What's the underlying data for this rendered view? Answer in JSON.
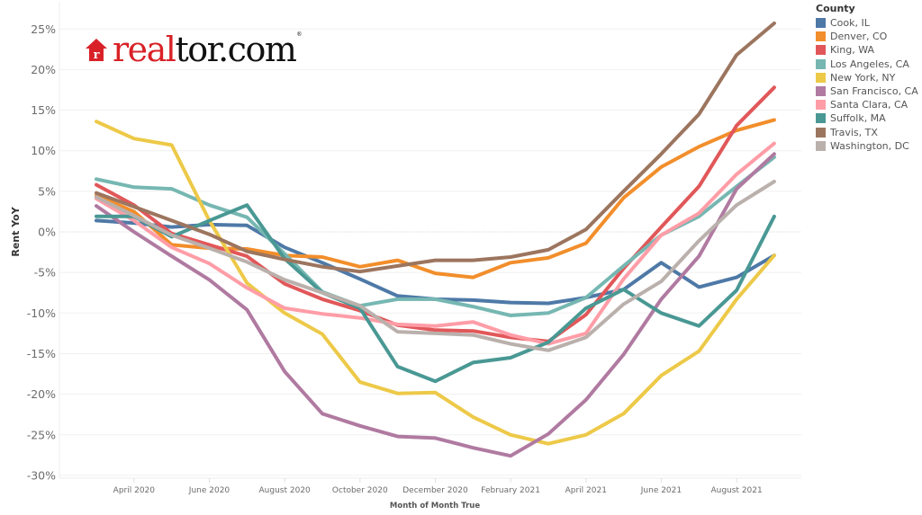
{
  "logo": {
    "red_part": "real",
    "black_part": "tor.com",
    "reg": "®",
    "icon": "house-r-icon"
  },
  "chart_data": {
    "type": "line",
    "title": "",
    "xlabel": "Month of Month True",
    "ylabel": "Rent YoY",
    "ylim": [
      -30,
      25
    ],
    "yticks": [
      25,
      20,
      15,
      10,
      5,
      0,
      -5,
      -10,
      -15,
      -20,
      -25,
      -30
    ],
    "ytick_labels": [
      "25%",
      "20%",
      "15%",
      "10%",
      "5%",
      "0%",
      "-5%",
      "-10%",
      "-15%",
      "-20%",
      "-25%",
      "-30%"
    ],
    "x": [
      "March 2020",
      "April 2020",
      "May 2020",
      "June 2020",
      "July 2020",
      "August 2020",
      "September 2020",
      "October 2020",
      "November 2020",
      "December 2020",
      "January 2021",
      "February 2021",
      "March 2021",
      "April 2021",
      "May 2021",
      "June 2021",
      "July 2021",
      "August 2021",
      "September 2021"
    ],
    "xtick_labels": [
      {
        "index": 1,
        "label": "April 2020"
      },
      {
        "index": 3,
        "label": "June 2020"
      },
      {
        "index": 5,
        "label": "August 2020"
      },
      {
        "index": 7,
        "label": "October 2020"
      },
      {
        "index": 9,
        "label": "December 2020"
      },
      {
        "index": 11,
        "label": "February 2021"
      },
      {
        "index": 13,
        "label": "April 2021"
      },
      {
        "index": 15,
        "label": "June 2021"
      },
      {
        "index": 17,
        "label": "August 2021"
      }
    ],
    "grid": true,
    "legend_position": "right",
    "legend_title": "County",
    "series": [
      {
        "name": "Cook, IL",
        "color": "#4e79a7",
        "values": [
          1.4,
          1.1,
          0.6,
          0.9,
          0.8,
          -1.9,
          -3.8,
          -5.8,
          -7.9,
          -8.3,
          -8.4,
          -8.7,
          -8.8,
          -8.1,
          -7.1,
          -3.8,
          -6.8,
          -5.6,
          -2.9
        ]
      },
      {
        "name": "Denver, CO",
        "color": "#f28e2b",
        "values": [
          4.5,
          2.5,
          -1.6,
          -2.0,
          -2.1,
          -2.9,
          -3.1,
          -4.3,
          -3.5,
          -5.1,
          -5.6,
          -3.8,
          -3.2,
          -1.4,
          4.2,
          8.0,
          10.5,
          12.5,
          13.8
        ]
      },
      {
        "name": "King, WA",
        "color": "#e15759",
        "values": [
          5.8,
          3.3,
          -0.2,
          -1.6,
          -3.0,
          -6.4,
          -8.3,
          -9.7,
          -11.5,
          -12.1,
          -12.2,
          -13.0,
          -13.5,
          -10.2,
          -4.5,
          0.6,
          5.6,
          13.1,
          17.8
        ]
      },
      {
        "name": "Los Angeles, CA",
        "color": "#76b7b2",
        "values": [
          6.5,
          5.5,
          5.3,
          3.3,
          1.8,
          -2.7,
          -7.4,
          -9.1,
          -8.3,
          -8.3,
          -9.2,
          -10.3,
          -10.0,
          -8.1,
          -4.2,
          -0.4,
          1.9,
          5.6,
          9.2
        ]
      },
      {
        "name": "New York, NY",
        "color": "#edc948",
        "values": [
          13.6,
          11.5,
          10.7,
          1.4,
          -6.3,
          -10.0,
          -12.6,
          -18.5,
          -19.9,
          -19.8,
          -22.8,
          -25.0,
          -26.1,
          -25.0,
          -22.4,
          -17.7,
          -14.7,
          -8.3,
          -2.9
        ]
      },
      {
        "name": "San Francisco, CA",
        "color": "#b07aa1",
        "values": [
          3.2,
          0.0,
          -3.0,
          -5.9,
          -9.6,
          -17.2,
          -22.4,
          -23.9,
          -25.2,
          -25.4,
          -26.6,
          -27.6,
          -24.9,
          -20.7,
          -15.1,
          -8.3,
          -3.0,
          5.3,
          9.6
        ]
      },
      {
        "name": "Santa Clara, CA",
        "color": "#ff9da7",
        "values": [
          4.1,
          1.4,
          -1.9,
          -3.9,
          -6.9,
          -9.4,
          -10.1,
          -10.6,
          -11.4,
          -11.6,
          -11.1,
          -12.7,
          -13.8,
          -12.5,
          -5.8,
          -0.4,
          2.3,
          7.1,
          10.9
        ]
      },
      {
        "name": "Suffolk, MA",
        "color": "#499894",
        "values": [
          1.9,
          1.9,
          -0.6,
          1.4,
          3.3,
          -3.3,
          -7.5,
          -9.4,
          -16.6,
          -18.4,
          -16.1,
          -15.5,
          -13.6,
          -9.4,
          -7.1,
          -10.0,
          -11.6,
          -7.2,
          1.9
        ]
      },
      {
        "name": "Travis, TX",
        "color": "#9c755f",
        "values": [
          4.8,
          3.1,
          1.4,
          -0.3,
          -2.4,
          -3.4,
          -4.3,
          -4.9,
          -4.2,
          -3.5,
          -3.5,
          -3.1,
          -2.2,
          0.3,
          5.0,
          9.6,
          14.5,
          21.8,
          25.7
        ]
      },
      {
        "name": "Washington, DC",
        "color": "#bab0ac",
        "values": [
          4.3,
          2.0,
          -0.4,
          -2.0,
          -3.7,
          -5.9,
          -7.5,
          -9.1,
          -12.3,
          -12.5,
          -12.7,
          -13.8,
          -14.6,
          -13.0,
          -8.9,
          -6.1,
          -1.1,
          3.3,
          6.2
        ]
      }
    ]
  }
}
